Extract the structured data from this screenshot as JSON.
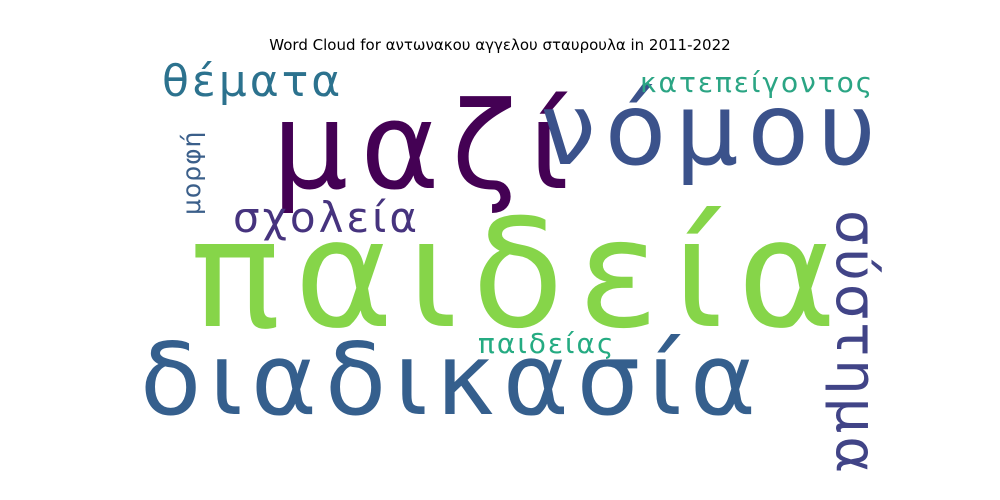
{
  "chart_data": {
    "type": "wordcloud",
    "title": "Word Cloud for αντωνακου αγγελου σταυρουλα in 2011-2022",
    "words": [
      {
        "text": "παιδεία",
        "color": "#86d549"
      },
      {
        "text": "μαζί",
        "color": "#440154"
      },
      {
        "text": "νόμου",
        "color": "#3b528b"
      },
      {
        "text": "διαδικασία",
        "color": "#355f8d"
      },
      {
        "text": "σύστημα",
        "color": "#414487"
      },
      {
        "text": "θέματα",
        "color": "#2c728e"
      },
      {
        "text": "σχολεία",
        "color": "#46337e"
      },
      {
        "text": "κατεπείγοντος",
        "color": "#2ba584"
      },
      {
        "text": "μορφή",
        "color": "#3b5f8a"
      },
      {
        "text": "παιδείας",
        "color": "#25ab82"
      }
    ]
  }
}
